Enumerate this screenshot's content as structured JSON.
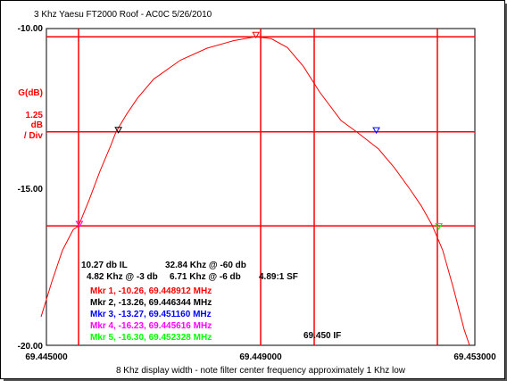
{
  "colors": {
    "background": "#ffffff",
    "grid": "#ff0000",
    "trace": "#ff0000",
    "axis_text": "#000000",
    "ylabel": "#ff0000",
    "marker_1": "#ff0000",
    "marker_2": "#000000",
    "marker_3": "#0000ff",
    "marker_4": "#ff00ff",
    "marker_5": "#00ff00"
  },
  "chart_data": {
    "type": "line",
    "title": "3 Khz Yaesu FT2000 Roof - AC0C 5/26/2010",
    "xlabel": "8 Khz display width - note filter center frequency approximately 1 Khz low",
    "ylabel": "G(dB)",
    "scale_label": [
      "1.25",
      "dB",
      "/ Div"
    ],
    "xlim": [
      69.445,
      69.453
    ],
    "ylim": [
      -20.0,
      -10.0
    ],
    "x_tick_labels": [
      "69.445000",
      "69.449000",
      "69.453000"
    ],
    "y_tick_labels": [
      "-10.00",
      "-15.00",
      "-20.00"
    ],
    "grid": {
      "vertical_lines_x": [
        69.4456,
        69.449,
        69.45,
        69.4523
      ],
      "horizontal_lines_y": [
        -10.26,
        -13.26,
        -16.23
      ],
      "center_line_label": "69.450 IF"
    },
    "series": [
      {
        "x": [
          69.4449,
          69.4451,
          69.4453,
          69.4455,
          69.4456,
          69.4458,
          69.446,
          69.4462,
          69.4463,
          69.4465,
          69.4467,
          69.447,
          69.4475,
          69.448,
          69.4485,
          69.4489,
          69.449,
          69.4492,
          69.4495,
          69.4498,
          69.4501,
          69.4505,
          69.4508,
          69.4512,
          69.4515,
          69.4518,
          69.452,
          69.4522,
          69.4524,
          69.4526,
          69.4528,
          69.4529
        ],
        "y": [
          -19.1,
          -18.0,
          -17.0,
          -16.35,
          -16.23,
          -15.4,
          -14.5,
          -13.7,
          -13.26,
          -12.7,
          -12.2,
          -11.6,
          -11.0,
          -10.62,
          -10.38,
          -10.26,
          -10.28,
          -10.32,
          -10.6,
          -11.2,
          -12.0,
          -12.9,
          -13.27,
          -13.8,
          -14.4,
          -15.1,
          -15.6,
          -16.2,
          -17.0,
          -18.2,
          -19.5,
          -20.0
        ]
      }
    ],
    "markers": [
      {
        "label": "Mkr 1, -10.26, 69.448912 MHz",
        "x": 69.448912,
        "y": -10.26
      },
      {
        "label": "Mkr 2, -13.26, 69.446344 MHz",
        "x": 69.446344,
        "y": -13.26
      },
      {
        "label": "Mkr 3, -13.27, 69.451160 MHz",
        "x": 69.45116,
        "y": -13.27
      },
      {
        "label": "Mkr 4, -16.23, 69.445616 MHz",
        "x": 69.445616,
        "y": -16.23
      },
      {
        "label": "Mkr 5, -16.30, 69.452328 MHz",
        "x": 69.452328,
        "y": -16.3
      }
    ],
    "annotations": {
      "line1_left": "10.27 db IL",
      "line1_right": "32.84 Khz @ -60 db",
      "line2_left": "4.82 Khz @ -3 db",
      "line2_mid": "6.71 Khz @ -6 db",
      "line2_right": "4.89:1 SF"
    }
  }
}
